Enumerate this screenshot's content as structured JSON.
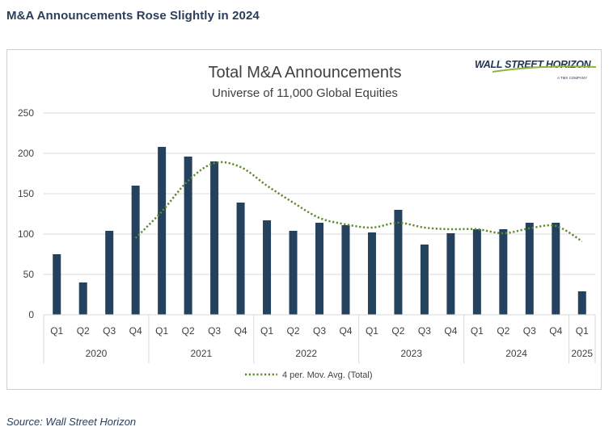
{
  "page": {
    "heading": "M&A Announcements Rose Slightly in 2024",
    "source": "Source: Wall Street Horizon"
  },
  "logo": {
    "name": "WALL STREET HORIZON",
    "tagline": "A TMX COMPANY"
  },
  "colors": {
    "bar": "#24415d",
    "moving_avg": "#5f8a2b",
    "grid": "#d9d9d9",
    "text": "#404040",
    "heading": "#2b3f5c"
  },
  "chart_data": {
    "type": "bar",
    "title": "Total M&A Announcements",
    "subtitle": "Universe of 11,000 Global Equities",
    "categories": [
      "Q1",
      "Q2",
      "Q3",
      "Q4",
      "Q1",
      "Q2",
      "Q3",
      "Q4",
      "Q1",
      "Q2",
      "Q3",
      "Q4",
      "Q1",
      "Q2",
      "Q3",
      "Q4",
      "Q1",
      "Q2",
      "Q3",
      "Q4",
      "Q1"
    ],
    "years": [
      {
        "label": "2020",
        "count": 4
      },
      {
        "label": "2021",
        "count": 4
      },
      {
        "label": "2022",
        "count": 4
      },
      {
        "label": "2023",
        "count": 4
      },
      {
        "label": "2024",
        "count": 4
      },
      {
        "label": "2025",
        "count": 1
      }
    ],
    "series": [
      {
        "values": [
          75,
          40,
          104,
          160,
          208,
          196,
          190,
          139,
          117,
          104,
          114,
          111,
          102,
          130,
          87,
          101,
          106,
          106,
          114,
          114,
          29
        ]
      }
    ],
    "moving_average": {
      "name": "4 per. Mov. Avg. (Total)",
      "start_index": 3,
      "values": [
        95,
        128,
        166,
        188,
        183,
        160,
        139,
        120,
        112,
        108,
        114,
        108,
        106,
        106,
        101,
        107,
        110,
        91
      ]
    },
    "ylim": [
      0,
      250
    ],
    "yticks": [
      0,
      50,
      100,
      150,
      200,
      250
    ],
    "grid": true,
    "legend": "bottom"
  }
}
